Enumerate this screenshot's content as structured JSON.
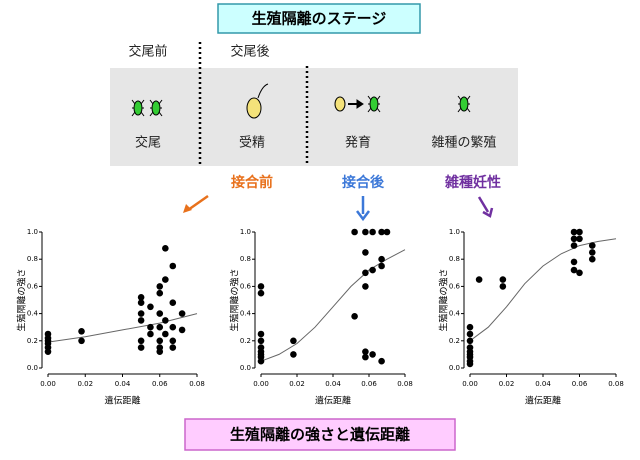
{
  "header": {
    "title": "生殖隔離のステージ"
  },
  "stages": {
    "pre_label": "交尾前",
    "post_label": "交尾後",
    "items": [
      "交尾",
      "受精",
      "発育",
      "雑種の繁殖"
    ]
  },
  "chart_data": [
    {
      "type": "scatter",
      "title": "接合前",
      "title_color": "#e8711c",
      "x_label": "遺伝距離",
      "y_label": "生殖隔離の強さ",
      "xlim": [
        0,
        0.08
      ],
      "ylim": [
        0,
        1
      ],
      "xticks": [
        {
          "value": 0,
          "label": "0.00"
        },
        {
          "value": 0.02,
          "label": "0.02"
        },
        {
          "value": 0.04,
          "label": "0.04"
        },
        {
          "value": 0.06,
          "label": "0.06"
        },
        {
          "value": 0.08,
          "label": "0.08"
        }
      ],
      "yticks": [
        {
          "value": 0,
          "label": "0.0"
        },
        {
          "value": 0.2,
          "label": "0.2"
        },
        {
          "value": 0.4,
          "label": "0.4"
        },
        {
          "value": 0.6,
          "label": "0.6"
        },
        {
          "value": 0.8,
          "label": "0.8"
        },
        {
          "value": 1,
          "label": "1.0"
        }
      ],
      "color": "#000000",
      "line_color": "#666666",
      "points": {
        "x": [
          0,
          0,
          0,
          0,
          0,
          0,
          0.018,
          0.018,
          0.05,
          0.05,
          0.05,
          0.05,
          0.05,
          0.05,
          0.055,
          0.055,
          0.055,
          0.06,
          0.06,
          0.06,
          0.06,
          0.06,
          0.06,
          0.06,
          0.063,
          0.063,
          0.063,
          0.063,
          0.067,
          0.067,
          0.067,
          0.067,
          0.067,
          0.072,
          0.072
        ],
        "y": [
          0.12,
          0.15,
          0.18,
          0.2,
          0.22,
          0.25,
          0.27,
          0.2,
          0.52,
          0.48,
          0.4,
          0.35,
          0.2,
          0.15,
          0.45,
          0.3,
          0.25,
          0.6,
          0.55,
          0.4,
          0.3,
          0.2,
          0.15,
          0.12,
          0.88,
          0.65,
          0.35,
          0.25,
          0.75,
          0.48,
          0.3,
          0.2,
          0.15,
          0.4,
          0.28
        ]
      },
      "fit_line": {
        "x": [
          0,
          0.02,
          0.04,
          0.06,
          0.08
        ],
        "y": [
          0.19,
          0.23,
          0.28,
          0.33,
          0.4
        ]
      }
    },
    {
      "type": "scatter",
      "title": "接合後",
      "title_color": "#3c78d8",
      "x_label": "遺伝距離",
      "y_label": "生殖隔離の強さ",
      "xlim": [
        0,
        0.08
      ],
      "ylim": [
        0,
        1
      ],
      "xticks": [
        {
          "value": 0,
          "label": "0.00"
        },
        {
          "value": 0.02,
          "label": "0.02"
        },
        {
          "value": 0.04,
          "label": "0.04"
        },
        {
          "value": 0.06,
          "label": "0.06"
        },
        {
          "value": 0.08,
          "label": "0.08"
        }
      ],
      "yticks": [
        {
          "value": 0,
          "label": "0.0"
        },
        {
          "value": 0.2,
          "label": "0.2"
        },
        {
          "value": 0.4,
          "label": "0.4"
        },
        {
          "value": 0.6,
          "label": "0.6"
        },
        {
          "value": 0.8,
          "label": "0.8"
        },
        {
          "value": 1,
          "label": "1.0"
        }
      ],
      "color": "#000000",
      "line_color": "#666666",
      "points": {
        "x": [
          0,
          0,
          0,
          0,
          0,
          0,
          0,
          0,
          0,
          0.018,
          0.018,
          0.052,
          0.052,
          0.058,
          0.058,
          0.058,
          0.058,
          0.058,
          0.058,
          0.062,
          0.062,
          0.062,
          0.067,
          0.067,
          0.067,
          0.067,
          0.07
        ],
        "y": [
          0.6,
          0.55,
          0.25,
          0.2,
          0.15,
          0.12,
          0.1,
          0.08,
          0.05,
          0.2,
          0.1,
          1,
          0.38,
          1,
          0.85,
          0.7,
          0.6,
          0.12,
          0.08,
          1,
          0.72,
          0.1,
          1,
          0.8,
          0.75,
          0.05,
          1
        ]
      },
      "fit_line": {
        "x": [
          0,
          0.01,
          0.02,
          0.03,
          0.04,
          0.05,
          0.06,
          0.07,
          0.08
        ],
        "y": [
          0.05,
          0.1,
          0.18,
          0.3,
          0.45,
          0.6,
          0.72,
          0.8,
          0.87
        ]
      }
    },
    {
      "type": "scatter",
      "title": "雑種妊性",
      "title_color": "#7030a0",
      "x_label": "遺伝距離",
      "y_label": "生殖隔離の強さ",
      "xlim": [
        0,
        0.08
      ],
      "ylim": [
        0,
        1
      ],
      "xticks": [
        {
          "value": 0,
          "label": "0.00"
        },
        {
          "value": 0.02,
          "label": "0.02"
        },
        {
          "value": 0.04,
          "label": "0.04"
        },
        {
          "value": 0.06,
          "label": "0.06"
        },
        {
          "value": 0.08,
          "label": "0.08"
        }
      ],
      "yticks": [
        {
          "value": 0,
          "label": "0.0"
        },
        {
          "value": 0.2,
          "label": "0.2"
        },
        {
          "value": 0.4,
          "label": "0.4"
        },
        {
          "value": 0.6,
          "label": "0.6"
        },
        {
          "value": 0.8,
          "label": "0.8"
        },
        {
          "value": 1,
          "label": "1.0"
        }
      ],
      "color": "#000000",
      "line_color": "#666666",
      "points": {
        "x": [
          0,
          0,
          0,
          0,
          0,
          0,
          0,
          0,
          0,
          0.005,
          0.018,
          0.018,
          0.057,
          0.057,
          0.057,
          0.057,
          0.057,
          0.06,
          0.06,
          0.06,
          0.067,
          0.067,
          0.067
        ],
        "y": [
          0.3,
          0.25,
          0.2,
          0.15,
          0.12,
          0.1,
          0.08,
          0.05,
          0.03,
          0.65,
          0.65,
          0.6,
          1,
          0.95,
          0.9,
          0.78,
          0.72,
          1,
          0.95,
          0.7,
          0.9,
          0.85,
          0.8
        ]
      },
      "fit_line": {
        "x": [
          0,
          0.01,
          0.02,
          0.03,
          0.04,
          0.05,
          0.06,
          0.07,
          0.08
        ],
        "y": [
          0.2,
          0.3,
          0.45,
          0.62,
          0.75,
          0.84,
          0.9,
          0.93,
          0.95
        ]
      }
    }
  ],
  "footer": {
    "title": "生殖隔離の強さと遺伝距離"
  }
}
